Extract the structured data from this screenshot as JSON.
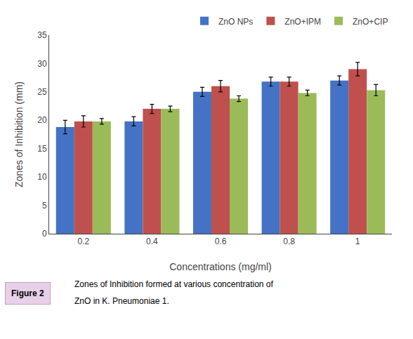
{
  "chart_data": {
    "type": "bar",
    "categories": [
      "0.2",
      "0.4",
      "0.6",
      "0.8",
      "1"
    ],
    "series": [
      {
        "name": "ZnO NPs",
        "color": "#4472C4",
        "values": [
          18.8,
          19.8,
          25.0,
          26.8,
          27.0
        ],
        "errors": [
          1.2,
          0.8,
          0.8,
          0.8,
          0.8
        ]
      },
      {
        "name": "ZnO+IPM",
        "color": "#C0504D",
        "values": [
          19.8,
          22.0,
          26.0,
          26.8,
          29.0
        ],
        "errors": [
          1.0,
          0.8,
          1.0,
          0.8,
          1.2
        ]
      },
      {
        "name": "ZnO+CIP",
        "color": "#9BBB59",
        "values": [
          19.8,
          22.0,
          23.8,
          24.8,
          25.3
        ],
        "errors": [
          0.5,
          0.5,
          0.5,
          0.5,
          1.0
        ]
      }
    ],
    "xlabel": "Concentrations (mg/ml)",
    "ylabel": "Zones of Inhibition (mm)",
    "ylim": [
      0,
      35
    ],
    "yticks": [
      0,
      5,
      10,
      15,
      20,
      25,
      30,
      35
    ],
    "grid": false,
    "legend": "upper right",
    "annotations": [
      "Figure 2",
      "Zones of Inhibition formed at various concentration of",
      "ZnO in K. Pneumoniae 1."
    ]
  }
}
